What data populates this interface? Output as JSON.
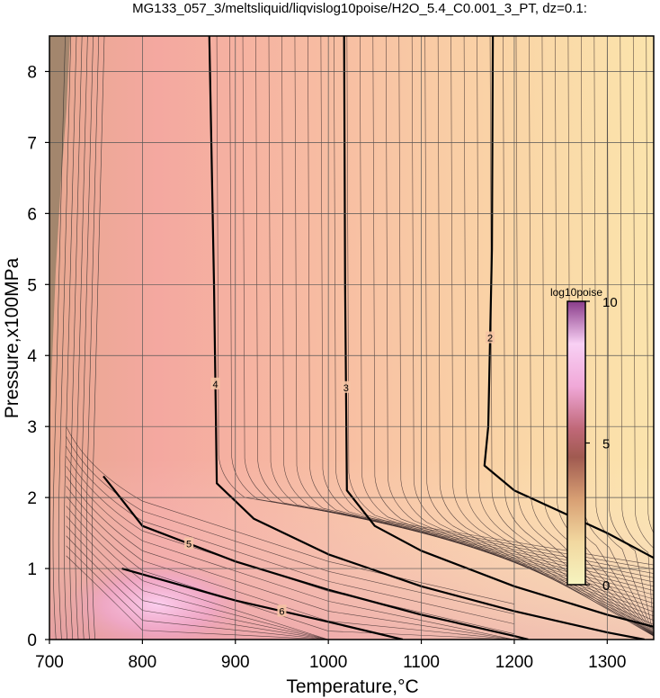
{
  "chart_data": {
    "type": "heatmap",
    "title": "MG133_057_3/meltsliquid/liqvislog10poise/H2O_5.4_C0.001_3_PT, dz=0.1:",
    "xlabel": "Temperature,°C",
    "ylabel": "Pressure,x100MPa",
    "xlim": [
      700,
      1350
    ],
    "ylim": [
      0,
      8.5
    ],
    "x_ticks": [
      700,
      800,
      900,
      1000,
      1100,
      1200,
      1300
    ],
    "y_ticks": [
      0,
      1,
      2,
      3,
      4,
      5,
      6,
      7,
      8
    ],
    "grid": true,
    "colorbar": {
      "title": "log10poise",
      "range": [
        0,
        10
      ],
      "ticks": [
        0,
        5,
        10
      ],
      "colors": [
        "#f4f0c8",
        "#f0c896",
        "#d89070",
        "#b06060",
        "#e090b0",
        "#f8c8f0",
        "#a050a0"
      ]
    },
    "labeled_contours": [
      {
        "level": 2,
        "points": [
          [
            1177,
            8.5
          ],
          [
            1176,
            5.5
          ],
          [
            1172,
            3.0
          ],
          [
            1168,
            2.45
          ],
          [
            1200,
            2.1
          ],
          [
            1250,
            1.8
          ],
          [
            1300,
            1.5
          ],
          [
            1350,
            1.15
          ]
        ]
      },
      {
        "level": 3,
        "points": [
          [
            1017,
            8.5
          ],
          [
            1018,
            5.0
          ],
          [
            1020,
            2.1
          ],
          [
            1050,
            1.6
          ],
          [
            1100,
            1.25
          ],
          [
            1200,
            0.75
          ],
          [
            1300,
            0.35
          ],
          [
            1350,
            0.18
          ]
        ]
      },
      {
        "level": 4,
        "points": [
          [
            872,
            8.5
          ],
          [
            877,
            5.0
          ],
          [
            880,
            2.2
          ],
          [
            920,
            1.7
          ],
          [
            1000,
            1.2
          ],
          [
            1100,
            0.75
          ],
          [
            1200,
            0.4
          ],
          [
            1300,
            0.1
          ],
          [
            1340,
            0.0
          ]
        ]
      },
      {
        "level": 5,
        "points": [
          [
            758,
            2.3
          ],
          [
            800,
            1.6
          ],
          [
            900,
            1.1
          ],
          [
            1000,
            0.7
          ],
          [
            1100,
            0.35
          ],
          [
            1200,
            0.05
          ],
          [
            1215,
            0.0
          ]
        ]
      },
      {
        "level": 6,
        "points": [
          [
            778,
            1.0
          ],
          [
            900,
            0.55
          ],
          [
            1000,
            0.25
          ],
          [
            1080,
            0.0
          ]
        ]
      }
    ]
  }
}
